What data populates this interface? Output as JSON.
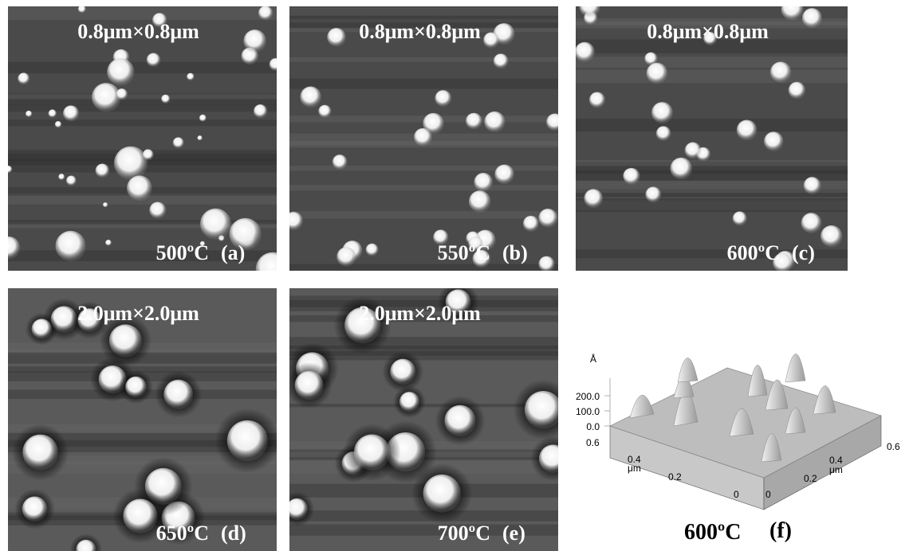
{
  "panels": [
    {
      "scale": "0.8μm×0.8μm",
      "temperature": "500ºC",
      "label": "(a)"
    },
    {
      "scale": "0.8μm×0.8μm",
      "temperature": "550ºC",
      "label": "(b)"
    },
    {
      "scale": "0.8μm×0.8μm",
      "temperature": "600ºC",
      "label": "(c)"
    },
    {
      "scale": "2.0μm×2.0μm",
      "temperature": "650ºC",
      "label": "(d)"
    },
    {
      "scale": "2.0μm×2.0μm",
      "temperature": "700ºC",
      "label": "(e)"
    }
  ],
  "surface_plot": {
    "z_unit": "Å",
    "z_ticks": [
      "200.0",
      "100.0",
      "0.0"
    ],
    "left_ticks": [
      "0.6",
      "0.4",
      "0.2",
      "0"
    ],
    "left_unit": "μm",
    "right_ticks": [
      "0",
      "0.2",
      "0.4",
      "0.6"
    ],
    "right_unit": "μm",
    "temperature": "600ºC",
    "label": "(f)"
  }
}
